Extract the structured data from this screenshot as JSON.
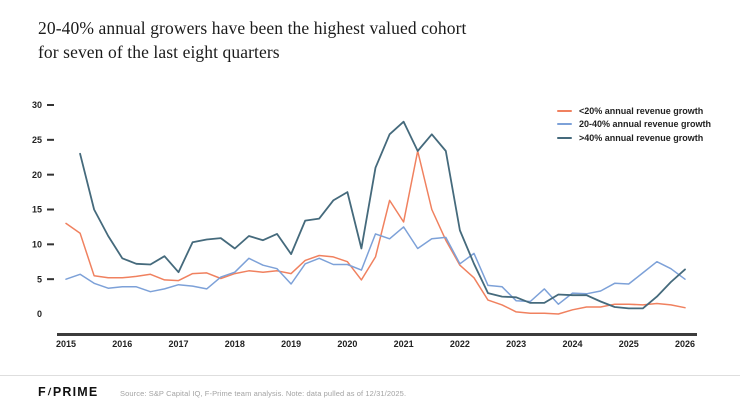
{
  "title": {
    "line1": "20-40% annual growers have been the highest valued cohort",
    "line2": "for seven of the last eight quarters"
  },
  "footer": {
    "logo_f": "F",
    "logo_slash": "/",
    "logo_rest": "PRIME",
    "source": "Source: S&P Capital IQ, F-Prime team analysis. Note: data pulled as of 12/31/2025."
  },
  "chart_data": {
    "type": "line",
    "x_unit": "quarterly",
    "x_start": "2015 Q1",
    "x_end": "2026 Q1",
    "x_labels": [
      "2015",
      "2016",
      "2017",
      "2018",
      "2019",
      "2020",
      "2021",
      "2022",
      "2023",
      "2024",
      "2025",
      "2026"
    ],
    "y_ticks": [
      30,
      25,
      20,
      15,
      10,
      5,
      0
    ],
    "ylim": [
      0,
      30
    ],
    "grid": false,
    "legend_position": "top-right",
    "series": [
      {
        "name": "<20% annual revenue growth",
        "color": "#F0815F",
        "values": [
          13.0,
          11.6,
          5.5,
          5.2,
          5.2,
          5.4,
          5.7,
          4.9,
          4.8,
          5.8,
          5.9,
          5.1,
          5.8,
          6.2,
          6.0,
          6.2,
          5.8,
          7.7,
          8.4,
          8.2,
          7.5,
          4.9,
          8.2,
          16.3,
          13.2,
          23.4,
          15.0,
          10.6,
          7.0,
          5.2,
          2.0,
          1.3,
          0.3,
          0.1,
          0.1,
          0.0,
          0.6,
          1.0,
          1.0,
          1.4,
          1.4,
          1.3,
          1.5,
          1.3,
          0.9
        ]
      },
      {
        "name": "20-40% annual revenue growth",
        "color": "#7DA1D8",
        "values": [
          5.0,
          5.7,
          4.4,
          3.7,
          3.9,
          3.9,
          3.2,
          3.6,
          4.2,
          4.0,
          3.6,
          5.3,
          6.0,
          8.0,
          7.0,
          6.5,
          4.3,
          7.2,
          8.0,
          7.1,
          7.1,
          6.3,
          11.5,
          10.8,
          12.5,
          9.4,
          10.8,
          11.0,
          7.2,
          8.7,
          4.1,
          3.9,
          1.9,
          1.8,
          3.6,
          1.4,
          3.0,
          2.9,
          3.3,
          4.4,
          4.3,
          5.9,
          7.5,
          6.5,
          5.0
        ]
      },
      {
        "name": ">40% annual revenue growth",
        "color": "#456A7C",
        "values": [
          null,
          23.0,
          15.0,
          11.2,
          8.0,
          7.2,
          7.1,
          8.3,
          6.0,
          10.3,
          10.7,
          10.9,
          9.4,
          11.2,
          10.6,
          11.5,
          8.6,
          13.4,
          13.7,
          16.3,
          17.5,
          9.4,
          21.0,
          25.8,
          27.6,
          23.4,
          25.8,
          23.4,
          12.0,
          7.2,
          3.0,
          2.5,
          2.4,
          1.6,
          1.6,
          2.8,
          2.7,
          2.7,
          1.8,
          1.0,
          0.8,
          0.8,
          2.5,
          4.6,
          6.4
        ]
      }
    ]
  }
}
